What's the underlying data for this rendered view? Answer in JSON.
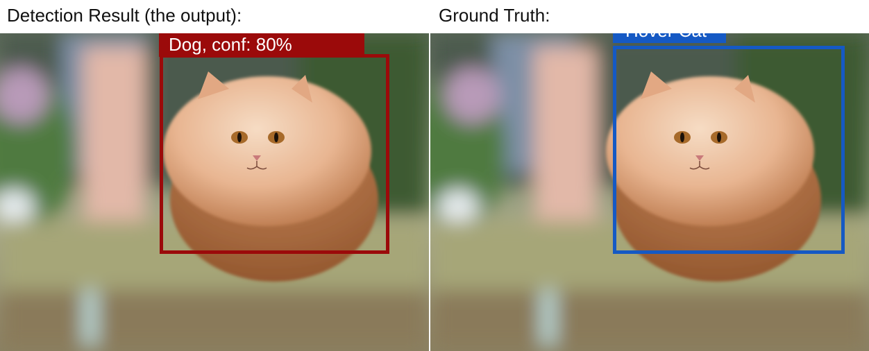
{
  "left_panel": {
    "caption": "Detection Result (the output):",
    "box_label": "Dog, conf: 80%",
    "box_color": "#9b0a0a"
  },
  "right_panel": {
    "caption": "Ground Truth:",
    "box_label": "Hover Cat",
    "box_color": "#1559c4"
  }
}
